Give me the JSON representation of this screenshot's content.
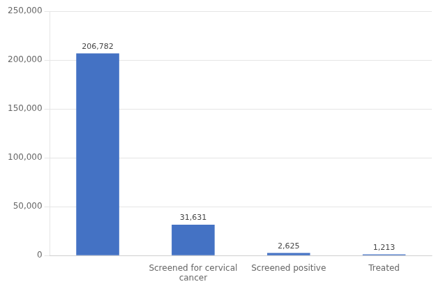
{
  "chart_data": {
    "type": "bar",
    "categories": [
      null,
      "Screened for cervical\ncancer",
      "Screened positive",
      "Treated"
    ],
    "values": [
      206782,
      31631,
      2625,
      1213
    ],
    "value_labels": [
      "206,782",
      "31,631",
      "2,625",
      "1,213"
    ],
    "data_labels": true,
    "color": "#4472C4",
    "ylim": [
      0,
      250000
    ],
    "yticks": [
      0,
      {
        "value": 50000,
        "label": "50,000"
      },
      {
        "value": 100000,
        "label": "100,000"
      },
      {
        "value": 150000,
        "label": "150,000"
      },
      {
        "value": 200000,
        "label": "200,000"
      },
      {
        "value": 250000,
        "label": "250,000"
      }
    ],
    "grid": true
  }
}
